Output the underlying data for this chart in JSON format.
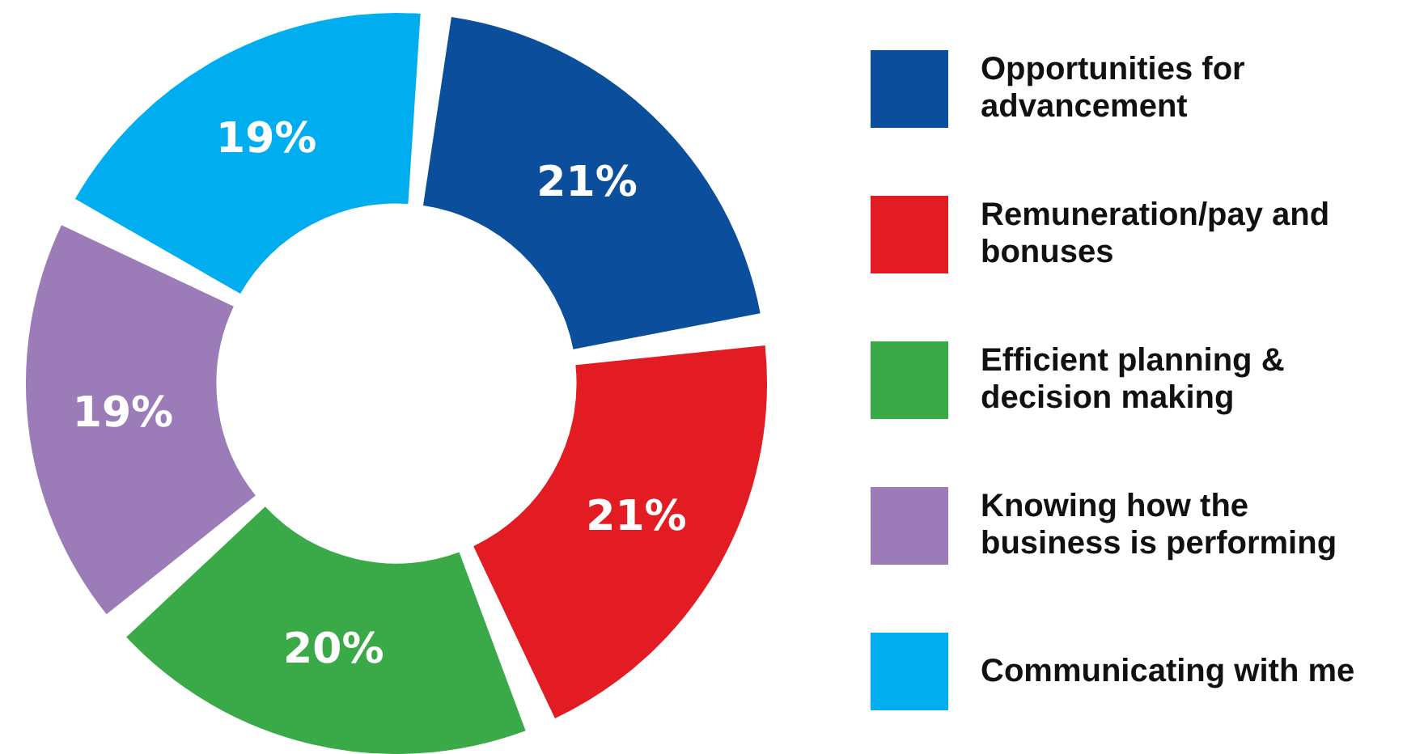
{
  "chart_data": {
    "type": "donut",
    "categories": [
      "Opportunities for advancement",
      "Remuneration/pay and bonuses",
      "Efficient planning & decision making",
      "Knowing how the business is performing",
      "Communicating with me"
    ],
    "values": [
      21,
      21,
      20,
      19,
      19
    ],
    "value_labels": [
      "21%",
      "21%",
      "20%",
      "19%",
      "19%"
    ],
    "colors": [
      "#0b4f9c",
      "#e31b23",
      "#3aaa48",
      "#9b7cb8",
      "#00aeef"
    ],
    "legend": "right"
  }
}
